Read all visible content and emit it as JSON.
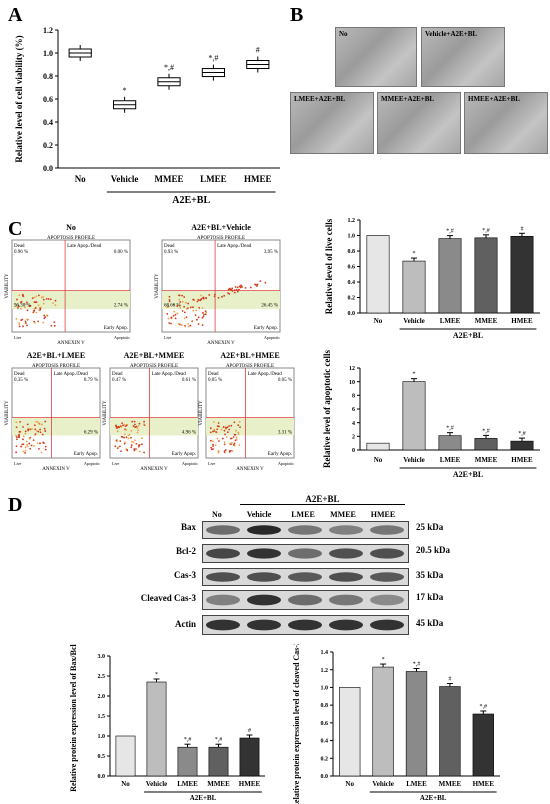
{
  "panels": {
    "a": "A",
    "b": "B",
    "c": "C",
    "d": "D"
  },
  "panel_b": {
    "images": [
      {
        "label": "No"
      },
      {
        "label": "Vehicle+A2E+BL"
      },
      {
        "label": "LMEE+A2E+BL"
      },
      {
        "label": "MMEE+A2E+BL"
      },
      {
        "label": "HMEE+A2E+BL"
      }
    ]
  },
  "panel_c": {
    "flow": [
      {
        "title": "No",
        "header": "APOPTOSIS PROFILE",
        "dead": "Dead\n0.96 %",
        "late": "Late Apop./Dead\n0.00 %",
        "live": "96.30 %",
        "early": "2.74 %",
        "early_label": "Early Apop."
      },
      {
        "title": "A2E+BL+Vehicle",
        "header": "APOPTOSIS PROFILE",
        "dead": "Dead\n0.93 %",
        "late": "Late Apop./Dead\n3.95 %",
        "live": "68.66 %",
        "early": "26.45 %",
        "early_label": "Early Apop."
      },
      {
        "title": "A2E+BL+LMEE",
        "header": "APOPTOSIS PROFILE",
        "dead": "Dead\n0.35 %",
        "late": "Late Apop./Dead\n0.79 %",
        "live": "",
        "early": "6.29 %",
        "early_label": "Early Apop."
      },
      {
        "title": "A2E+BL+MMEE",
        "header": "APOPTOSIS PROFILE",
        "dead": "Dead\n0.47 %",
        "late": "Late Apop./Dead\n0.61 %",
        "live": "",
        "early": "4.96 %",
        "early_label": "Early Apop."
      },
      {
        "title": "A2E+BL+HMEE",
        "header": "APOPTOSIS PROFILE",
        "dead": "Dead\n0.05 %",
        "late": "Late Apop./Dead\n0.05 %",
        "live": "",
        "early": "3.31 %",
        "early_label": "Early Apop."
      }
    ],
    "axis_x": "ANNEXIN V",
    "axis_y": "VIABILITY",
    "live_label": "Live",
    "apoptotic_label": "Apoptotic"
  },
  "panel_d": {
    "header_no": "No",
    "header_group": "A2E+BL",
    "lanes": [
      "Vehicle",
      "LMEE",
      "MMEE",
      "HMEE"
    ],
    "rows": [
      {
        "name": "Bax",
        "kda": "25 kDa"
      },
      {
        "name": "Bcl-2",
        "kda": "20.5 kDa"
      },
      {
        "name": "Cas-3",
        "kda": "35 kDa"
      },
      {
        "name": "Cleaved Cas-3",
        "kda": "17 kDa"
      },
      {
        "name": "Actin",
        "kda": "45 kDa"
      }
    ]
  },
  "chart_data": [
    {
      "id": "A",
      "type": "box",
      "categories": [
        "No",
        "Vehicle",
        "MMEE",
        "LMEE",
        "HMEE"
      ],
      "values": [
        1.0,
        0.55,
        0.75,
        0.83,
        0.9
      ],
      "annotations": [
        "",
        "*",
        "*,#",
        "*,#",
        "#"
      ],
      "ylabel": "Relative level of cell viability (%)",
      "group_label": "A2E+BL",
      "ylim": [
        0,
        1.2
      ],
      "yticks": [
        "0.0",
        "0.2",
        "0.4",
        "0.6",
        "0.8",
        "1.0",
        "1.2"
      ]
    },
    {
      "id": "C-live",
      "type": "bar",
      "categories": [
        "No",
        "Vehicle",
        "LMEE",
        "MMEE",
        "HMEE"
      ],
      "values": [
        1.0,
        0.67,
        0.96,
        0.97,
        0.99
      ],
      "annotations": [
        "",
        "*",
        "*,#",
        "*,#",
        "#"
      ],
      "colors": [
        "#e6e6e6",
        "#bdbdbd",
        "#8a8a8a",
        "#606060",
        "#333333"
      ],
      "ylabel": "Relative level of live cells",
      "group_label": "A2E+BL",
      "ylim": [
        0,
        1.2
      ],
      "yticks": [
        "0.0",
        "0.2",
        "0.4",
        "0.6",
        "0.8",
        "1.0",
        "1.2"
      ]
    },
    {
      "id": "C-apoptotic",
      "type": "bar",
      "categories": [
        "No",
        "Vehicle",
        "LMEE",
        "MMEE",
        "HMEE"
      ],
      "values": [
        1.0,
        10.0,
        2.1,
        1.7,
        1.3
      ],
      "annotations": [
        "",
        "*",
        "*,#",
        "*,#",
        "*,#"
      ],
      "colors": [
        "#e6e6e6",
        "#bdbdbd",
        "#8a8a8a",
        "#606060",
        "#333333"
      ],
      "ylabel": "Relative level of apoptotic cells",
      "group_label": "A2E+BL",
      "ylim": [
        0,
        12
      ],
      "yticks": [
        "0",
        "2",
        "4",
        "6",
        "8",
        "10",
        "12"
      ]
    },
    {
      "id": "D-bax",
      "type": "bar",
      "categories": [
        "No",
        "Vehicle",
        "LMEE",
        "MMEE",
        "HMEE"
      ],
      "values": [
        1.0,
        2.35,
        0.72,
        0.72,
        0.95
      ],
      "annotations": [
        "",
        "*",
        "*,#",
        "*,#",
        "#"
      ],
      "colors": [
        "#e6e6e6",
        "#bdbdbd",
        "#8a8a8a",
        "#606060",
        "#333333"
      ],
      "ylabel": "Relative protein expression level of Bax/Bcl2",
      "group_label": "A2E+BL",
      "ylim": [
        0,
        3.0
      ],
      "yticks": [
        "0.0",
        "0.5",
        "1.0",
        "1.5",
        "2.0",
        "2.5",
        "3.0"
      ]
    },
    {
      "id": "D-cas3",
      "type": "bar",
      "categories": [
        "No",
        "Vehicle",
        "LMEE",
        "MMEE",
        "HMEE"
      ],
      "values": [
        1.0,
        1.23,
        1.18,
        1.01,
        0.7
      ],
      "annotations": [
        "",
        "*",
        "*,#",
        "#",
        "*,#"
      ],
      "colors": [
        "#e6e6e6",
        "#bdbdbd",
        "#8a8a8a",
        "#606060",
        "#333333"
      ],
      "ylabel": "Relative protein expression level of cleaved Cas-3/Cas-3",
      "group_label": "A2E+BL",
      "ylim": [
        0,
        1.4
      ],
      "yticks": [
        "0.0",
        "0.2",
        "0.4",
        "0.6",
        "0.8",
        "1.0",
        "1.2",
        "1.4"
      ]
    }
  ]
}
